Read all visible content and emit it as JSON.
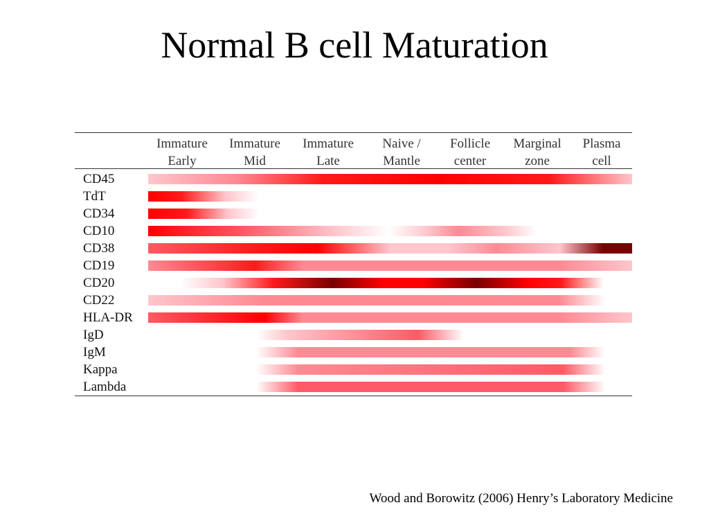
{
  "slide": {
    "title": "Normal B cell Maturation",
    "citation": "Wood and Borowitz (2006) Henry’s Laboratory Medicine"
  },
  "table": {
    "columns": [
      {
        "line1": "Immature",
        "line2": "Early"
      },
      {
        "line1": "Immature",
        "line2": "Mid"
      },
      {
        "line1": "Immature",
        "line2": "Late"
      },
      {
        "line1": "Naive /",
        "line2": "Mantle"
      },
      {
        "line1": "Follicle",
        "line2": "center"
      },
      {
        "line1": "Marginal",
        "line2": "zone"
      },
      {
        "line1": "Plasma",
        "line2": "cell"
      }
    ],
    "rows": [
      "CD45",
      "TdT",
      "CD34",
      "CD10",
      "CD38",
      "CD19",
      "CD20",
      "CD22",
      "HLA-DR",
      "IgD",
      "IgM",
      "Kappa",
      "Lambda"
    ]
  },
  "expression_colors": {
    "none": "#ffffff",
    "weak": "#ffc6cc",
    "moderate": "#ff8a94",
    "strong": "#ff1a1a",
    "very_strong": "#7a0000"
  }
}
